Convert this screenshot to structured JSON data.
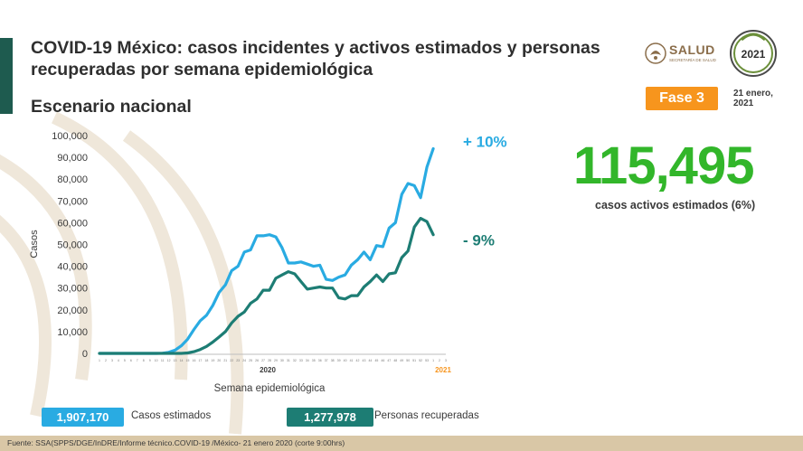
{
  "header": {
    "title": "COVID-19 México: casos incidentes y activos estimados y personas recuperadas por semana epidemiológica",
    "subtitle": "Escenario nacional",
    "phase": "Fase 3",
    "date_line1": "21 enero,",
    "date_line2": "2021",
    "salud_logo": "SALUD",
    "salud_subtitle": "SECRETARÍA DE SALUD",
    "seal_year": "2021"
  },
  "summary": {
    "active_cases": "115,495",
    "active_caption": "casos activos estimados (6%)",
    "estimated_cases_value": "1,907,170",
    "estimated_cases_label": "Casos estimados",
    "recovered_value": "1,277,978",
    "recovered_label": "Personas recuperadas"
  },
  "footer": {
    "source": "Fuente: SSA(SPPS/DGE/InDRE/Informe técnico.COVID-19 /México- 21 enero 2020 (corte 9:00hrs)"
  },
  "colors": {
    "estimated": "#29abe2",
    "recovered": "#1d7d74",
    "active": "#32b62a",
    "phase": "#f7951d",
    "brand": "#1e5b4f"
  },
  "chart_data": {
    "type": "line",
    "title": "",
    "xlabel": "Semana epidemiológica",
    "ylabel": "Casos",
    "ylim": [
      0,
      100000
    ],
    "yticks": [
      "0",
      "10,000",
      "20,000",
      "30,000",
      "40,000",
      "50,000",
      "60,000",
      "70,000",
      "80,000",
      "90,000",
      "100,000"
    ],
    "year_labels": [
      "2020",
      "2021"
    ],
    "weeks": [
      1,
      2,
      3,
      4,
      5,
      6,
      7,
      8,
      9,
      10,
      11,
      12,
      13,
      14,
      15,
      16,
      17,
      18,
      19,
      20,
      21,
      22,
      23,
      24,
      25,
      26,
      27,
      28,
      29,
      30,
      31,
      32,
      33,
      34,
      35,
      36,
      37,
      38,
      39,
      40,
      41,
      42,
      43,
      44,
      45,
      46,
      47,
      48,
      49,
      50,
      51,
      52,
      53,
      1,
      2,
      3
    ],
    "series": [
      {
        "name": "",
        "change_label": "+ 10%",
        "values": [
          0,
          0,
          0,
          0,
          0,
          0,
          0,
          0,
          0,
          0,
          100,
          500,
          1500,
          3500,
          6500,
          11000,
          15000,
          17500,
          22000,
          28000,
          31500,
          38000,
          40000,
          46500,
          47500,
          54000,
          54000,
          54500,
          53500,
          48500,
          41500,
          41500,
          42000,
          41000,
          40000,
          40500,
          34000,
          33500,
          35000,
          36000,
          40500,
          43000,
          46500,
          43000,
          49500,
          49000,
          57500,
          60000,
          73000,
          78000,
          77000,
          71500,
          85500,
          94000
        ],
        "values_note": ""
      },
      {
        "name": "",
        "change_label": "- 9%",
        "values": [
          0,
          0,
          0,
          0,
          0,
          0,
          0,
          0,
          0,
          0,
          0,
          0,
          0,
          0,
          200,
          800,
          1800,
          3200,
          5200,
          7500,
          10000,
          14000,
          17000,
          19000,
          23000,
          25000,
          29000,
          29000,
          34500,
          36000,
          37500,
          36500,
          33000,
          29500,
          30000,
          30500,
          30000,
          30000,
          25500,
          25000,
          26500,
          26500,
          30500,
          33000,
          36000,
          33000,
          36500,
          37000,
          44000,
          47000,
          58000,
          62000,
          60500,
          54500
        ],
        "values_note": ""
      }
    ]
  }
}
